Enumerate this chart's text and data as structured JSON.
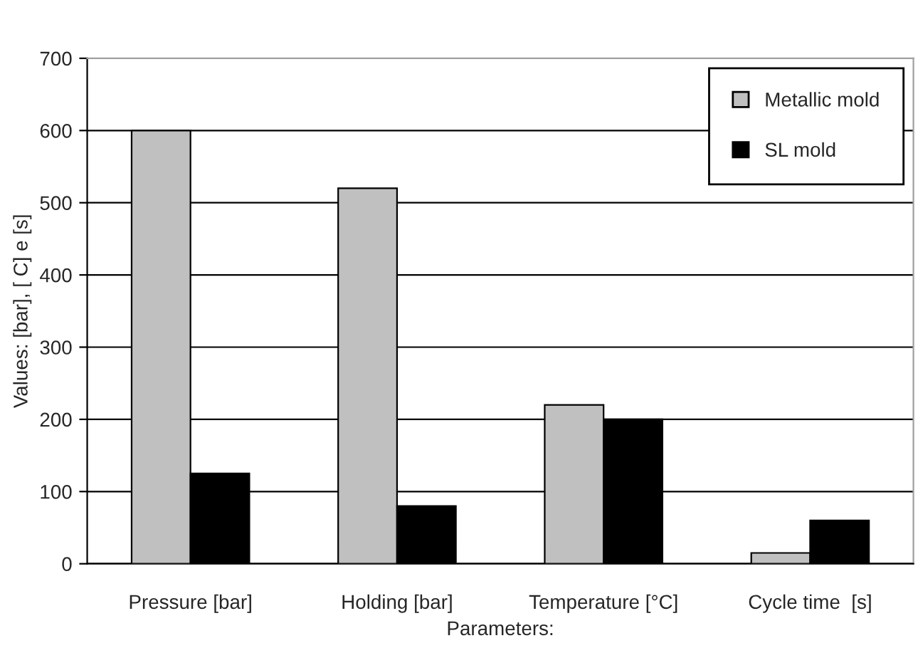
{
  "chart_data": {
    "type": "bar",
    "xlabel": "Parameters:",
    "ylabel": "Values: [bar], [ C] e [s]",
    "categories": [
      "Pressure [bar]",
      "Holding [bar]",
      "Temperature [°C]",
      "Cycle time  [s]"
    ],
    "series": [
      {
        "name": "Metallic mold",
        "color": "#c0c0c0",
        "values": [
          600,
          520,
          220,
          15
        ]
      },
      {
        "name": "SL mold",
        "color": "#000000",
        "values": [
          125,
          80,
          200,
          60
        ]
      }
    ],
    "ylim": [
      0,
      700
    ],
    "yticks": [
      0,
      100,
      200,
      300,
      400,
      500,
      600,
      700
    ],
    "grid": "y",
    "legend": "top right"
  }
}
